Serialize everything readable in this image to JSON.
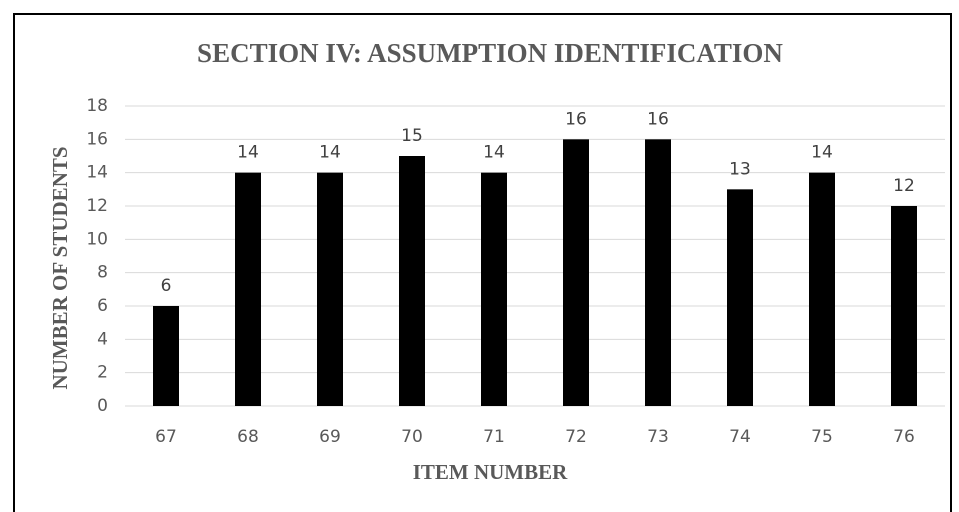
{
  "chart_data": {
    "type": "bar",
    "title": "SECTION IV: ASSUMPTION IDENTIFICATION",
    "x_label": "ITEM NUMBER",
    "y_label": "NUMBER OF STUDENTS",
    "categories": [
      "67",
      "68",
      "69",
      "70",
      "71",
      "72",
      "73",
      "74",
      "75",
      "76"
    ],
    "values": [
      6,
      14,
      14,
      15,
      14,
      16,
      16,
      13,
      14,
      12
    ],
    "color": "#000000",
    "ylim": [
      0,
      18
    ],
    "yticks": [
      0,
      2,
      4,
      6,
      8,
      10,
      12,
      14,
      16,
      18
    ],
    "grid": true
  }
}
